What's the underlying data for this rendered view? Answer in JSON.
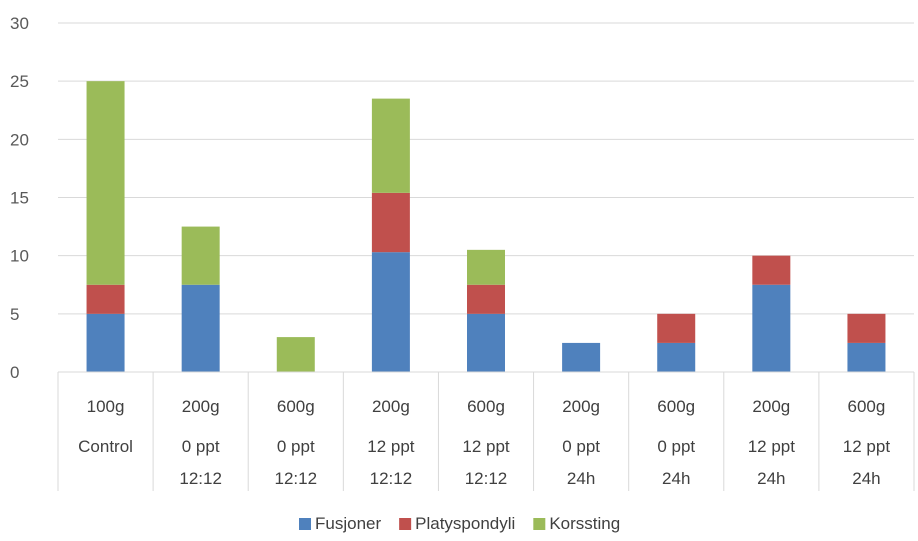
{
  "chart_data": {
    "type": "bar",
    "stacked": true,
    "title": "",
    "xlabel": "",
    "ylabel": "",
    "ylim": [
      0,
      30
    ],
    "yticks": [
      0,
      5,
      10,
      15,
      20,
      25,
      30
    ],
    "grid": true,
    "legend_position": "bottom",
    "categories": [
      [
        "100g",
        "Control"
      ],
      [
        "200g",
        "0 ppt",
        "12:12"
      ],
      [
        "600g",
        "0 ppt",
        "12:12"
      ],
      [
        "200g",
        "12 ppt",
        "12:12"
      ],
      [
        "600g",
        "12 ppt",
        "12:12"
      ],
      [
        "200g",
        "0 ppt",
        "24h"
      ],
      [
        "600g",
        "0 ppt",
        "24h"
      ],
      [
        "200g",
        "12 ppt",
        "24h"
      ],
      [
        "600g",
        "12 ppt",
        "24h"
      ]
    ],
    "series": [
      {
        "name": "Fusjoner",
        "color": "#4f81bd",
        "values": [
          5,
          7.5,
          0,
          10.3,
          5,
          2.5,
          2.5,
          7.5,
          2.5
        ]
      },
      {
        "name": "Platyspondyli",
        "color": "#c0504d",
        "values": [
          2.5,
          0,
          0,
          5.1,
          2.5,
          0,
          2.5,
          2.5,
          2.5
        ]
      },
      {
        "name": "Korssting",
        "color": "#9bbb59",
        "values": [
          17.5,
          5,
          3,
          8.1,
          3,
          0,
          0,
          0,
          0
        ]
      }
    ]
  }
}
